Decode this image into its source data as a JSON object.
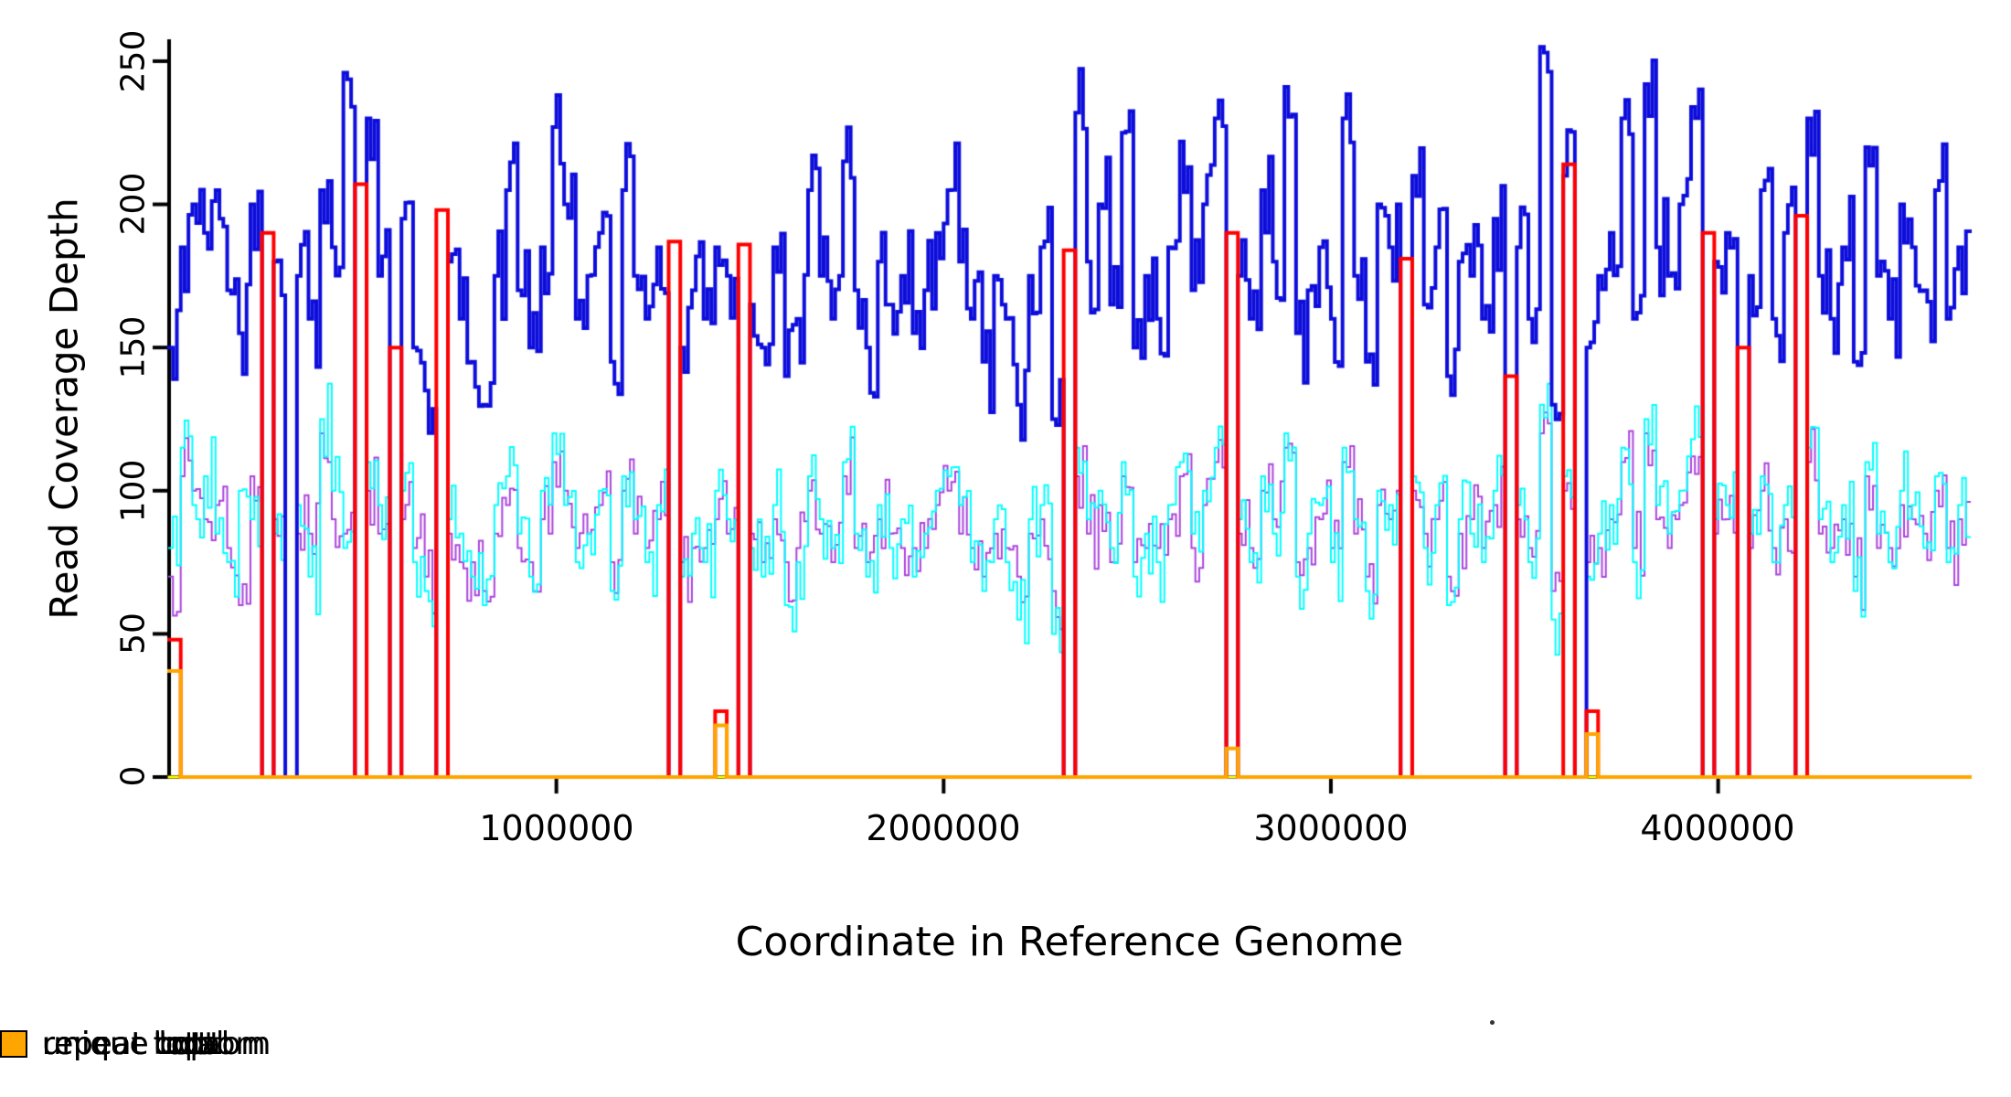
{
  "chart_data": {
    "type": "line",
    "subtype": "step-coverage-plot",
    "title": "",
    "xlabel": "Coordinate in Reference Genome",
    "ylabel": "Read Coverage Depth",
    "xlim": [
      0,
      4650000
    ],
    "ylim": [
      0,
      257
    ],
    "grid": false,
    "legend_position": "bottom",
    "axis_color": "#000000",
    "yticks": [
      0,
      50,
      100,
      150,
      200,
      250
    ],
    "ytick_labels": [
      "0",
      "50",
      "100",
      "150",
      "200",
      "250"
    ],
    "xticks": [
      1000000,
      2000000,
      3000000,
      4000000
    ],
    "xtick_labels": [
      "1000000",
      "2000000",
      "3000000",
      "4000000"
    ],
    "x_start": 0,
    "x_step": 30000,
    "n_bins": 155,
    "render": {
      "substeps": 3,
      "seed": 7,
      "jitter": [
        18,
        14,
        14,
        0,
        0,
        0
      ]
    },
    "series": [
      {
        "name": "unique total",
        "color": "#0D0DDB",
        "line_width": 4,
        "values": [
          150,
          185,
          200,
          190,
          205,
          170,
          155,
          200,
          0,
          180,
          0,
          175,
          160,
          205,
          185,
          246,
          0,
          230,
          175,
          0,
          195,
          150,
          135,
          0,
          180,
          160,
          145,
          130,
          175,
          205,
          170,
          150,
          185,
          227,
          200,
          160,
          175,
          190,
          145,
          205,
          175,
          160,
          185,
          0,
          150,
          170,
          160,
          185,
          175,
          0,
          165,
          150,
          185,
          140,
          160,
          205,
          175,
          160,
          215,
          170,
          150,
          180,
          165,
          175,
          155,
          170,
          190,
          205,
          180,
          160,
          145,
          175,
          160,
          130,
          175,
          185,
          125,
          0,
          232,
          180,
          200,
          165,
          225,
          150,
          175,
          160,
          185,
          222,
          170,
          200,
          230,
          0,
          175,
          160,
          205,
          180,
          241,
          155,
          170,
          185,
          160,
          230,
          175,
          145,
          200,
          185,
          0,
          210,
          165,
          185,
          140,
          180,
          175,
          160,
          195,
          0,
          185,
          160,
          255,
          130,
          210,
          0,
          150,
          175,
          190,
          230,
          160,
          242,
          185,
          175,
          200,
          234,
          0,
          180,
          190,
          0,
          175,
          205,
          160,
          190,
          0,
          230,
          175,
          160,
          185,
          145,
          220,
          175,
          160,
          200,
          185,
          170,
          205,
          160,
          185
        ]
      },
      {
        "name": "unique top",
        "color": "#00FFFF",
        "line_width": 2,
        "values": [
          80,
          115,
          95,
          105,
          85,
          75,
          100,
          90,
          0,
          85,
          0,
          95,
          70,
          125,
          100,
          80,
          0,
          110,
          95,
          0,
          100,
          75,
          65,
          0,
          90,
          85,
          70,
          60,
          95,
          105,
          85,
          70,
          100,
          120,
          95,
          75,
          85,
          100,
          65,
          105,
          90,
          75,
          95,
          0,
          70,
          85,
          75,
          100,
          90,
          0,
          80,
          70,
          95,
          60,
          75,
          105,
          90,
          80,
          110,
          85,
          70,
          95,
          80,
          90,
          70,
          85,
          100,
          105,
          95,
          75,
          65,
          90,
          75,
          55,
          90,
          95,
          50,
          0,
          115,
          90,
          100,
          80,
          110,
          70,
          85,
          75,
          95,
          110,
          85,
          100,
          115,
          0,
          90,
          75,
          105,
          85,
          120,
          70,
          85,
          95,
          75,
          115,
          90,
          65,
          100,
          95,
          0,
          105,
          80,
          95,
          60,
          90,
          85,
          75,
          100,
          0,
          95,
          75,
          130,
          55,
          105,
          0,
          70,
          85,
          95,
          115,
          75,
          125,
          95,
          85,
          100,
          118,
          0,
          90,
          95,
          0,
          85,
          105,
          75,
          95,
          0,
          115,
          90,
          75,
          95,
          65,
          110,
          85,
          75,
          100,
          95,
          80,
          105,
          75,
          95
        ]
      },
      {
        "name": "unique bottom",
        "color": "#AA44DD",
        "line_width": 2,
        "values": [
          70,
          105,
          100,
          90,
          95,
          80,
          60,
          105,
          0,
          90,
          0,
          85,
          85,
          120,
          90,
          85,
          0,
          100,
          85,
          0,
          90,
          80,
          70,
          0,
          85,
          75,
          75,
          65,
          85,
          95,
          80,
          75,
          90,
          110,
          100,
          80,
          85,
          95,
          75,
          100,
          85,
          80,
          90,
          0,
          75,
          80,
          80,
          90,
          85,
          0,
          85,
          75,
          90,
          75,
          80,
          100,
          85,
          75,
          105,
          80,
          75,
          90,
          85,
          80,
          80,
          80,
          95,
          100,
          85,
          80,
          70,
          85,
          80,
          70,
          85,
          90,
          65,
          0,
          105,
          85,
          95,
          75,
          105,
          75,
          80,
          80,
          90,
          105,
          80,
          95,
          110,
          0,
          85,
          80,
          100,
          90,
          115,
          75,
          80,
          90,
          80,
          110,
          85,
          70,
          95,
          90,
          0,
          100,
          85,
          90,
          70,
          85,
          90,
          80,
          95,
          0,
          90,
          80,
          120,
          65,
          100,
          0,
          75,
          80,
          90,
          110,
          80,
          120,
          90,
          80,
          95,
          112,
          0,
          85,
          90,
          0,
          80,
          100,
          80,
          90,
          0,
          110,
          85,
          80,
          90,
          70,
          105,
          80,
          80,
          95,
          90,
          85,
          100,
          80,
          90
        ]
      },
      {
        "name": "repeat total",
        "color": "#FF0000",
        "line_width": 4,
        "values_sparse": {
          "default": 0,
          "points": {
            "0": 48,
            "8": 190,
            "16": 207,
            "19": 150,
            "23": 198,
            "43": 187,
            "47": 23,
            "49": 186,
            "77": 184,
            "91": 190,
            "106": 181,
            "115": 140,
            "120": 214,
            "122": 23,
            "132": 190,
            "135": 150,
            "140": 196
          }
        }
      },
      {
        "name": "repeat top",
        "color": "#FFFF00",
        "line_width": 3,
        "values_sparse": {
          "default": 0,
          "points": {}
        }
      },
      {
        "name": "repeat bottom",
        "color": "#FFA500",
        "line_width": 4,
        "values_sparse": {
          "default": 0,
          "points": {
            "0": 37,
            "47": 18,
            "91": 10,
            "122": 15
          }
        }
      }
    ]
  }
}
